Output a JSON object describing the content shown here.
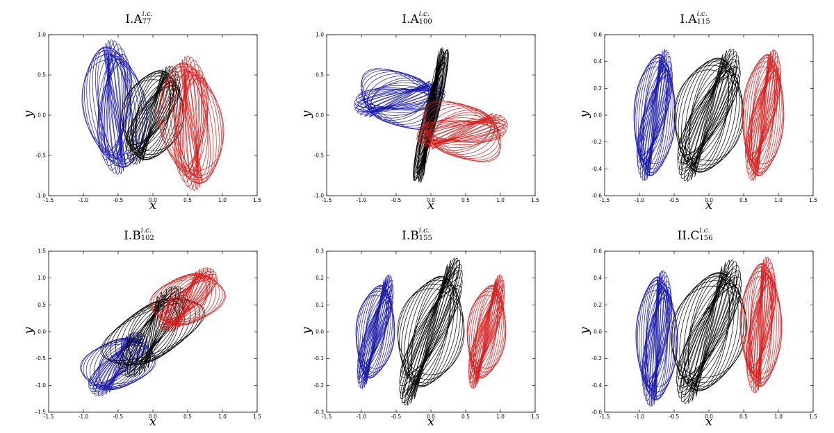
{
  "chart_data": [
    {
      "type": "line",
      "title_main": "I.A",
      "title_sup": "i.c.",
      "title_sub": "77",
      "xlabel": "x",
      "ylabel": "y",
      "xlim": [
        -1.5,
        1.5
      ],
      "ylim": [
        -1.0,
        1.0
      ],
      "xticks": [
        "-1.5",
        "-1.0",
        "-0.5",
        "0.0",
        "0.5",
        "1.0",
        "1.5"
      ],
      "yticks": [
        "1.0",
        "0.5",
        "0.0",
        "-0.5",
        "-1.0"
      ],
      "colors": {
        "left": "#1a1aa8",
        "center": "#000000",
        "right": "#d81e1e"
      },
      "series": [
        {
          "color": "blue",
          "cx": -0.55,
          "cy": 0.1,
          "rx": 0.45,
          "ry": 0.75,
          "tilt": 0.35
        },
        {
          "color": "black",
          "cx": 0.0,
          "cy": 0.0,
          "rx": 0.45,
          "ry": 0.55,
          "tilt": 0.0
        },
        {
          "color": "red",
          "cx": 0.55,
          "cy": -0.1,
          "rx": 0.45,
          "ry": 0.75,
          "tilt": 0.35
        }
      ]
    },
    {
      "type": "line",
      "title_main": "I.A",
      "title_sup": "i.c.",
      "title_sub": "100",
      "xlabel": "x",
      "ylabel": "y",
      "xlim": [
        -1.5,
        1.5
      ],
      "ylim": [
        -1.0,
        1.0
      ],
      "xticks": [
        "-1.5",
        "-1.0",
        "-0.5",
        "0.0",
        "0.5",
        "1.0",
        "1.5"
      ],
      "yticks": [
        "1.0",
        "0.5",
        "0.0",
        "-0.5",
        "-1.0"
      ],
      "colors": {
        "left": "#1a1aa8",
        "center": "#000000",
        "right": "#d81e1e"
      },
      "series": [
        {
          "color": "blue",
          "cx": -0.45,
          "cy": 0.2,
          "rx": 0.6,
          "ry": 0.35,
          "tilt": -0.5
        },
        {
          "color": "black",
          "cx": 0.0,
          "cy": 0.0,
          "rx": 0.1,
          "ry": 0.85,
          "tilt": -0.3
        },
        {
          "color": "red",
          "cx": 0.45,
          "cy": -0.2,
          "rx": 0.6,
          "ry": 0.35,
          "tilt": -0.5
        }
      ]
    },
    {
      "type": "line",
      "title_main": "I.A",
      "title_sup": "i.c.",
      "title_sub": "115",
      "xlabel": "x",
      "ylabel": "y",
      "xlim": [
        -1.5,
        1.5
      ],
      "ylim": [
        -0.6,
        0.6
      ],
      "xticks": [
        "-1.5",
        "-1.0",
        "-0.5",
        "0.0",
        "0.5",
        "1.0",
        "1.5"
      ],
      "yticks": [
        "0.6",
        "0.4",
        "0.2",
        "0.0",
        "-0.2",
        "-0.4",
        "-0.6"
      ],
      "colors": {
        "left": "#1a1aa8",
        "center": "#000000",
        "right": "#d81e1e"
      },
      "series": [
        {
          "color": "blue",
          "cx": -0.78,
          "cy": 0.0,
          "rx": 0.3,
          "ry": 0.45,
          "tilt": 0.0
        },
        {
          "color": "black",
          "cx": 0.0,
          "cy": 0.0,
          "rx": 0.5,
          "ry": 0.42,
          "tilt": 0.0
        },
        {
          "color": "red",
          "cx": 0.78,
          "cy": 0.0,
          "rx": 0.3,
          "ry": 0.45,
          "tilt": 0.0
        }
      ]
    },
    {
      "type": "line",
      "title_main": "I.B",
      "title_sup": "i.c.",
      "title_sub": "102",
      "xlabel": "x",
      "ylabel": "y",
      "xlim": [
        -1.5,
        1.5
      ],
      "ylim": [
        -1.5,
        1.5
      ],
      "xticks": [
        "-1.5",
        "-1.0",
        "-0.5",
        "0.0",
        "0.5",
        "1.0",
        "1.5"
      ],
      "yticks": [
        "1.5",
        "1.0",
        "0.5",
        "0.0",
        "-0.5",
        "-1.0",
        "-1.5"
      ],
      "colors": {
        "left": "#1a1aa8",
        "center": "#000000",
        "right": "#d81e1e"
      },
      "series": [
        {
          "color": "blue",
          "cx": -0.5,
          "cy": -0.6,
          "rx": 0.55,
          "ry": 0.45,
          "tilt": 0.2
        },
        {
          "color": "black",
          "cx": 0.0,
          "cy": 0.0,
          "rx": 0.85,
          "ry": 0.45,
          "tilt": 0.55
        },
        {
          "color": "red",
          "cx": 0.5,
          "cy": 0.6,
          "rx": 0.55,
          "ry": 0.45,
          "tilt": 0.2
        }
      ]
    },
    {
      "type": "line",
      "title_main": "I.B",
      "title_sup": "i.c.",
      "title_sub": "155",
      "xlabel": "x",
      "ylabel": "y",
      "xlim": [
        -1.5,
        1.5
      ],
      "ylim": [
        -0.3,
        0.3
      ],
      "xticks": [
        "-1.5",
        "-1.0",
        "-0.5",
        "0.0",
        "0.5",
        "1.0",
        "1.5"
      ],
      "yticks": [
        "0.3",
        "0.2",
        "0.1",
        "0.0",
        "-0.1",
        "-0.2",
        "-0.3"
      ],
      "colors": {
        "left": "#1a1aa8",
        "center": "#000000",
        "right": "#d81e1e"
      },
      "series": [
        {
          "color": "blue",
          "cx": -0.8,
          "cy": 0.0,
          "rx": 0.28,
          "ry": 0.17,
          "tilt": 0.0
        },
        {
          "color": "black",
          "cx": 0.0,
          "cy": 0.0,
          "rx": 0.48,
          "ry": 0.2,
          "tilt": 0.0
        },
        {
          "color": "red",
          "cx": 0.8,
          "cy": 0.0,
          "rx": 0.28,
          "ry": 0.17,
          "tilt": 0.0
        }
      ]
    },
    {
      "type": "line",
      "title_main": "II.C",
      "title_sup": "i.c.",
      "title_sub": "156",
      "xlabel": "x",
      "ylabel": "y",
      "xlim": [
        -1.5,
        1.5
      ],
      "ylim": [
        -0.6,
        0.6
      ],
      "xticks": [
        "-1.5",
        "-1.0",
        "-0.5",
        "0.0",
        "0.5",
        "1.0",
        "1.5"
      ],
      "yticks": [
        "0.6",
        "0.4",
        "0.2",
        "0.0",
        "-0.2",
        "-0.4",
        "-0.6"
      ],
      "colors": {
        "left": "#1a1aa8",
        "center": "#000000",
        "right": "#d81e1e"
      },
      "series": [
        {
          "color": "blue",
          "cx": -0.75,
          "cy": -0.05,
          "rx": 0.3,
          "ry": 0.45,
          "tilt": 0.15
        },
        {
          "color": "black",
          "cx": 0.0,
          "cy": 0.0,
          "rx": 0.55,
          "ry": 0.42,
          "tilt": 0.1
        },
        {
          "color": "red",
          "cx": 0.75,
          "cy": 0.05,
          "rx": 0.3,
          "ry": 0.45,
          "tilt": 0.15
        }
      ]
    }
  ]
}
